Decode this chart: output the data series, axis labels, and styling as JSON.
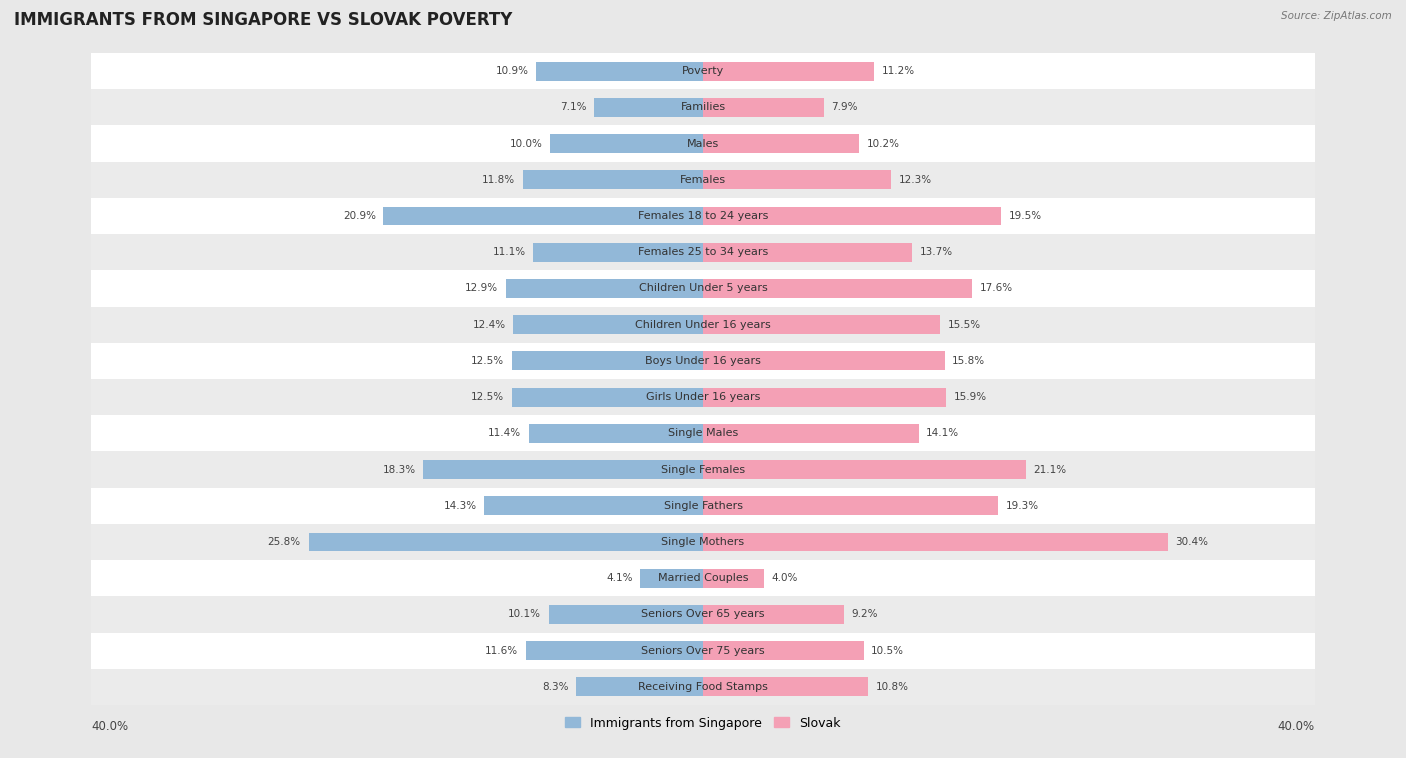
{
  "title": "IMMIGRANTS FROM SINGAPORE VS SLOVAK POVERTY",
  "source": "Source: ZipAtlas.com",
  "categories": [
    "Poverty",
    "Families",
    "Males",
    "Females",
    "Females 18 to 24 years",
    "Females 25 to 34 years",
    "Children Under 5 years",
    "Children Under 16 years",
    "Boys Under 16 years",
    "Girls Under 16 years",
    "Single Males",
    "Single Females",
    "Single Fathers",
    "Single Mothers",
    "Married Couples",
    "Seniors Over 65 years",
    "Seniors Over 75 years",
    "Receiving Food Stamps"
  ],
  "singapore_values": [
    10.9,
    7.1,
    10.0,
    11.8,
    20.9,
    11.1,
    12.9,
    12.4,
    12.5,
    12.5,
    11.4,
    18.3,
    14.3,
    25.8,
    4.1,
    10.1,
    11.6,
    8.3
  ],
  "slovak_values": [
    11.2,
    7.9,
    10.2,
    12.3,
    19.5,
    13.7,
    17.6,
    15.5,
    15.8,
    15.9,
    14.1,
    21.1,
    19.3,
    30.4,
    4.0,
    9.2,
    10.5,
    10.8
  ],
  "singapore_color": "#92b8d8",
  "slovak_color": "#f4a0b5",
  "singapore_label": "Immigrants from Singapore",
  "slovak_label": "Slovak",
  "axis_limit": 40.0,
  "outer_bg": "#e8e8e8",
  "row_even_color": "#ffffff",
  "row_odd_color": "#ebebeb",
  "title_fontsize": 12,
  "label_fontsize": 8,
  "value_fontsize": 7.5,
  "bar_height": 0.52
}
